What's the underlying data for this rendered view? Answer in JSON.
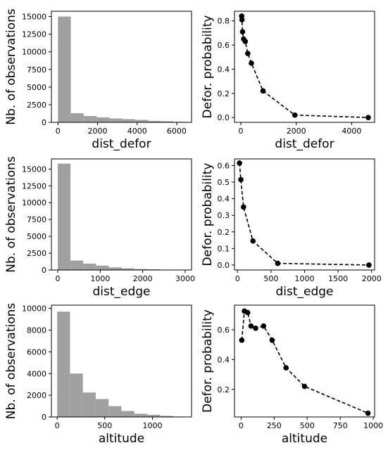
{
  "chart_data": [
    {
      "id": "hist-dist-defor",
      "type": "histogram",
      "xlabel": "dist_defor",
      "ylabel": "Nb. of observations",
      "xlim": [
        -330,
        6750
      ],
      "ylim": [
        0,
        15750
      ],
      "xticks": [
        0,
        2000,
        4000,
        6000
      ],
      "yticks": [
        0,
        2500,
        5000,
        7500,
        10000,
        12500,
        15000
      ],
      "bin_edges": [
        0,
        650,
        1300,
        1950,
        2600,
        3250,
        3900,
        4550,
        5200,
        5850,
        6500
      ],
      "counts": [
        15000,
        1300,
        900,
        700,
        550,
        450,
        350,
        200,
        150,
        80
      ],
      "color": "#a0a0a0"
    },
    {
      "id": "prob-dist-defor",
      "type": "line",
      "xlabel": "dist_defor",
      "ylabel": "Defor. probability",
      "xlim": [
        -230,
        4830
      ],
      "ylim": [
        -0.04,
        0.88
      ],
      "xticks": [
        0,
        2000,
        4000
      ],
      "yticks": [
        0.0,
        0.2,
        0.4,
        0.6,
        0.8
      ],
      "x": [
        30,
        40,
        60,
        100,
        160,
        250,
        380,
        800,
        1950,
        4600
      ],
      "y": [
        0.84,
        0.81,
        0.71,
        0.65,
        0.63,
        0.53,
        0.45,
        0.22,
        0.02,
        0.0
      ],
      "color": "#000000",
      "linestyle": "dashed",
      "marker": "circle"
    },
    {
      "id": "hist-dist-edge",
      "type": "histogram",
      "xlabel": "dist_edge",
      "ylabel": "Nb. of observations",
      "xlim": [
        -150,
        3150
      ],
      "ylim": [
        0,
        16500
      ],
      "xticks": [
        0,
        1000,
        2000,
        3000
      ],
      "yticks": [
        0,
        2500,
        5000,
        7500,
        10000,
        12500,
        15000
      ],
      "bin_edges": [
        0,
        300,
        600,
        900,
        1200,
        1500,
        1800,
        2100,
        2400,
        2700,
        3000
      ],
      "counts": [
        15800,
        1400,
        950,
        650,
        400,
        250,
        150,
        100,
        50,
        20
      ],
      "color": "#a0a0a0"
    },
    {
      "id": "prob-dist-edge",
      "type": "line",
      "xlabel": "dist_edge",
      "ylabel": "Defor. probability",
      "xlim": [
        -45,
        2045
      ],
      "ylim": [
        -0.03,
        0.64
      ],
      "xticks": [
        0,
        500,
        1000,
        1500,
        2000
      ],
      "yticks": [
        0.0,
        0.1,
        0.2,
        0.3,
        0.4,
        0.5,
        0.6
      ],
      "x": [
        30,
        50,
        90,
        230,
        600,
        1960
      ],
      "y": [
        0.615,
        0.515,
        0.35,
        0.145,
        0.01,
        0.0
      ],
      "color": "#000000",
      "linestyle": "dashed",
      "marker": "circle"
    },
    {
      "id": "hist-altitude",
      "type": "histogram",
      "xlabel": "altitude",
      "ylabel": "Nb. of observations",
      "xlim": [
        -60,
        1410
      ],
      "ylim": [
        0,
        10300
      ],
      "xticks": [
        0,
        500,
        1000
      ],
      "yticks": [
        0,
        2000,
        4000,
        6000,
        8000,
        10000
      ],
      "bin_edges": [
        0,
        135,
        270,
        405,
        540,
        675,
        810,
        945,
        1080,
        1215,
        1350
      ],
      "counts": [
        9700,
        4000,
        2250,
        1650,
        1000,
        550,
        300,
        200,
        100,
        40
      ],
      "color": "#a0a0a0"
    },
    {
      "id": "prob-altitude",
      "type": "line",
      "xlabel": "altitude",
      "ylabel": "Defor. probability",
      "xlim": [
        -50,
        1010
      ],
      "ylim": [
        0.015,
        0.765
      ],
      "xticks": [
        0,
        250,
        500,
        750,
        1000
      ],
      "yticks": [
        0.2,
        0.4,
        0.6
      ],
      "x": [
        5,
        25,
        50,
        75,
        110,
        170,
        235,
        340,
        480,
        960
      ],
      "y": [
        0.53,
        0.725,
        0.715,
        0.625,
        0.61,
        0.625,
        0.53,
        0.345,
        0.22,
        0.04
      ],
      "color": "#000000",
      "linestyle": "dashed",
      "marker": "circle"
    }
  ]
}
